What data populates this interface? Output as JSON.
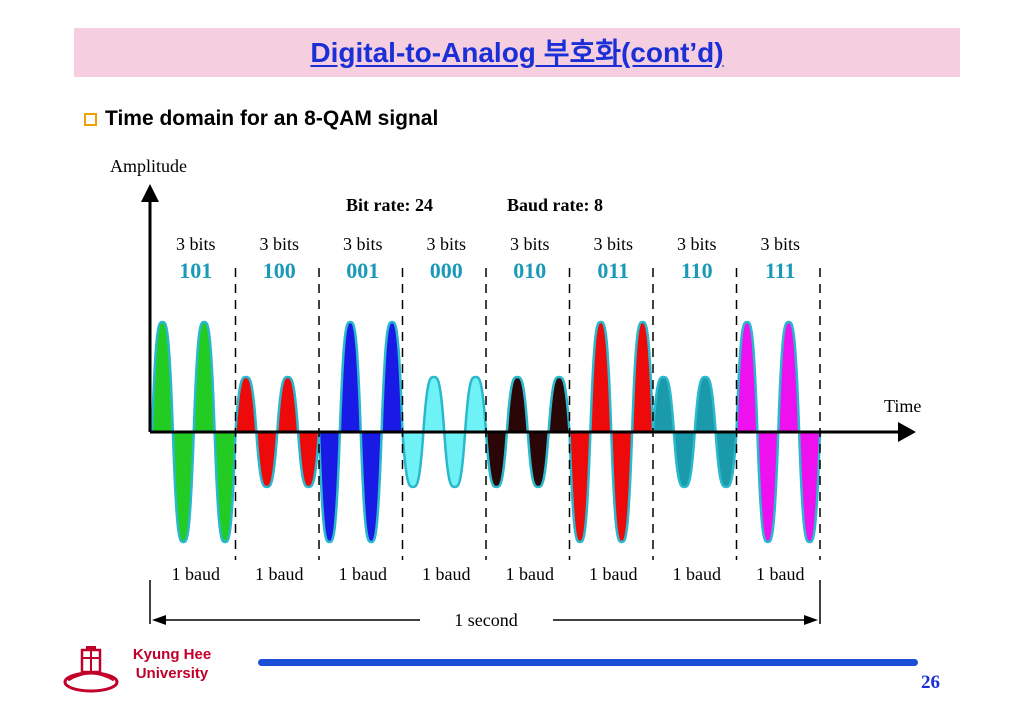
{
  "slide": {
    "title": "Digital-to-Analog 부호화(cont’d)",
    "bullet": "Time domain for an 8-QAM signal",
    "university_line1": "Kyung Hee",
    "university_line2": "University",
    "page_number": "26"
  },
  "diagram": {
    "y_axis_label": "Amplitude",
    "x_axis_label": "Time",
    "bit_rate": "Bit rate: 24",
    "baud_rate": "Baud rate: 8",
    "duration_label": "1 second",
    "segments": [
      {
        "bits_label": "3 bits",
        "code": "101",
        "baud_label": "1 baud",
        "amplitude": "high",
        "phase": "sine",
        "color": "#22cc22"
      },
      {
        "bits_label": "3 bits",
        "code": "100",
        "baud_label": "1 baud",
        "amplitude": "low",
        "phase": "sine",
        "color": "#ee0a0a"
      },
      {
        "bits_label": "3 bits",
        "code": "001",
        "baud_label": "1 baud",
        "amplitude": "high",
        "phase": "inverted",
        "color": "#1a1ae6"
      },
      {
        "bits_label": "3 bits",
        "code": "000",
        "baud_label": "1 baud",
        "amplitude": "low",
        "phase": "inverted",
        "color": "#6ff2f6"
      },
      {
        "bits_label": "3 bits",
        "code": "010",
        "baud_label": "1 baud",
        "amplitude": "low",
        "phase": "inverted",
        "color": "#2a0606"
      },
      {
        "bits_label": "3 bits",
        "code": "011",
        "baud_label": "1 baud",
        "amplitude": "high",
        "phase": "inverted",
        "color": "#ee0a0a"
      },
      {
        "bits_label": "3 bits",
        "code": "110",
        "baud_label": "1 baud",
        "amplitude": "low",
        "phase": "sine",
        "color": "#1a9aaa"
      },
      {
        "bits_label": "3 bits",
        "code": "111",
        "baud_label": "1 baud",
        "amplitude": "high",
        "phase": "sine",
        "color": "#ee10ee"
      }
    ],
    "colors": {
      "code_text": "#1a9ab8",
      "wave_outline": "#2ab8cc",
      "axis": "#000000"
    }
  }
}
